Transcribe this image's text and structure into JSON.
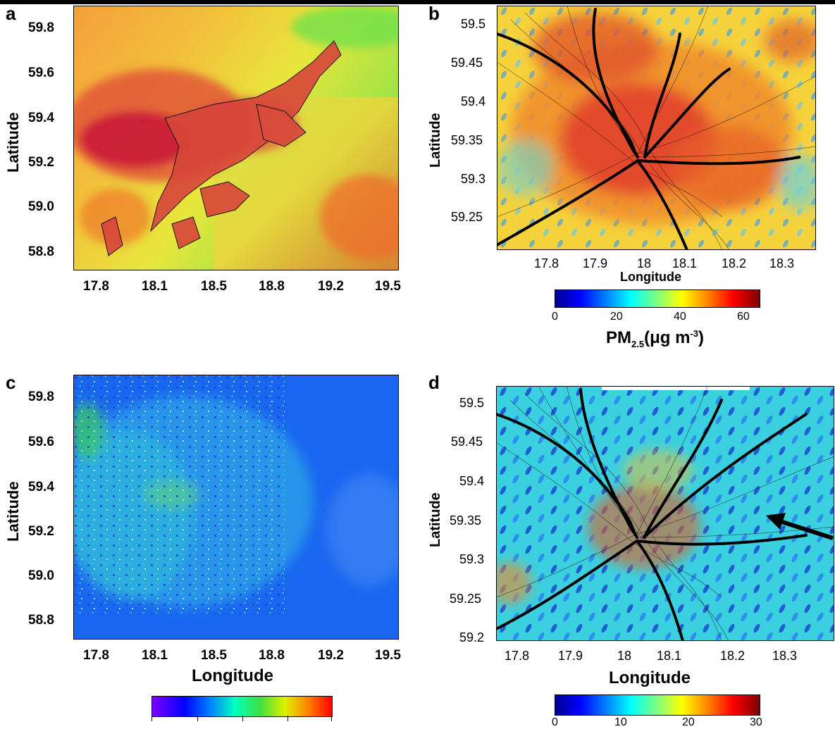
{
  "panels": {
    "a": {
      "label": "a",
      "ylabel": "Latitude",
      "yticks": [
        "59.8",
        "59.6",
        "59.4",
        "59.2",
        "59.0",
        "58.8"
      ],
      "xticks": [
        "17.8",
        "18.1",
        "18.5",
        "18.8",
        "19.2",
        "19.5"
      ],
      "xlabel": ""
    },
    "b": {
      "label": "b",
      "ylabel": "Latitude",
      "yticks": [
        "59.5",
        "59.45",
        "59.4",
        "59.35",
        "59.3",
        "59.25"
      ],
      "xticks": [
        "17.8",
        "17.9",
        "18",
        "18.1",
        "18.2",
        "18.3"
      ],
      "xlabel": "Longitude",
      "colorbar_ticks": [
        "0",
        "20",
        "40",
        "60"
      ],
      "colorbar_label_main": "PM",
      "colorbar_label_sub": "2.5",
      "colorbar_label_unit": "(μg m",
      "colorbar_label_sup": "-3",
      "colorbar_label_end": ")"
    },
    "c": {
      "label": "c",
      "ylabel": "Latitude",
      "yticks": [
        "59.8",
        "59.6",
        "59.4",
        "59.2",
        "59.0",
        "58.8"
      ],
      "xticks": [
        "17.8",
        "18.1",
        "18.5",
        "18.8",
        "19.2",
        "19.5"
      ],
      "xlabel": "Longitude"
    },
    "d": {
      "label": "d",
      "ylabel": "Latitude",
      "yticks": [
        "59.5",
        "59.45",
        "59.4",
        "59.35",
        "59.3",
        "59.25",
        "59.2"
      ],
      "xticks": [
        "17.8",
        "17.9",
        "18",
        "18.1",
        "18.2",
        "18.3"
      ],
      "xlabel": "Longitude",
      "colorbar_ticks": [
        "0",
        "10",
        "20",
        "30"
      ]
    }
  },
  "colors": {
    "jet_low": "#00008f",
    "jet_mid": "#7fff7f",
    "jet_high": "#7f0000",
    "arrow": "#000000"
  }
}
